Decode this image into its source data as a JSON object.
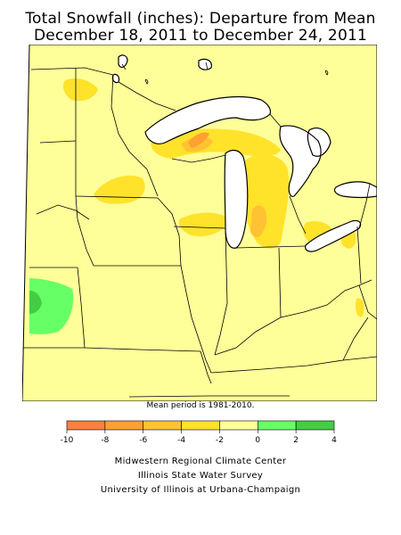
{
  "title_line1": "Total Snowfall (inches): Departure from Mean",
  "title_line2": "December 18, 2011 to December 24, 2011",
  "mean_note": "Mean period is 1981-2010.",
  "legend": {
    "breaks": [
      "-10",
      "-8",
      "-6",
      "-4",
      "-2",
      "0",
      "2",
      "4"
    ],
    "colors": [
      "#ff7f3f",
      "#ffa033",
      "#ffc233",
      "#ffe22a",
      "#ffff99",
      "#66ff66",
      "#44cc44"
    ]
  },
  "credits": {
    "line1": "Midwestern Regional Climate Center",
    "line2": "Illinois State Water Survey",
    "line3": "University of Illinois at Urbana-Champaign"
  },
  "map_colors": {
    "base": "#ffff99",
    "water": "#ffffff",
    "dep_m2_m4": "#ffe22a",
    "dep_m4_m6": "#ffc233",
    "dep_m6_m8": "#ffa033",
    "pos_0_2": "#66ff66",
    "pos_2_4": "#44cc44"
  }
}
